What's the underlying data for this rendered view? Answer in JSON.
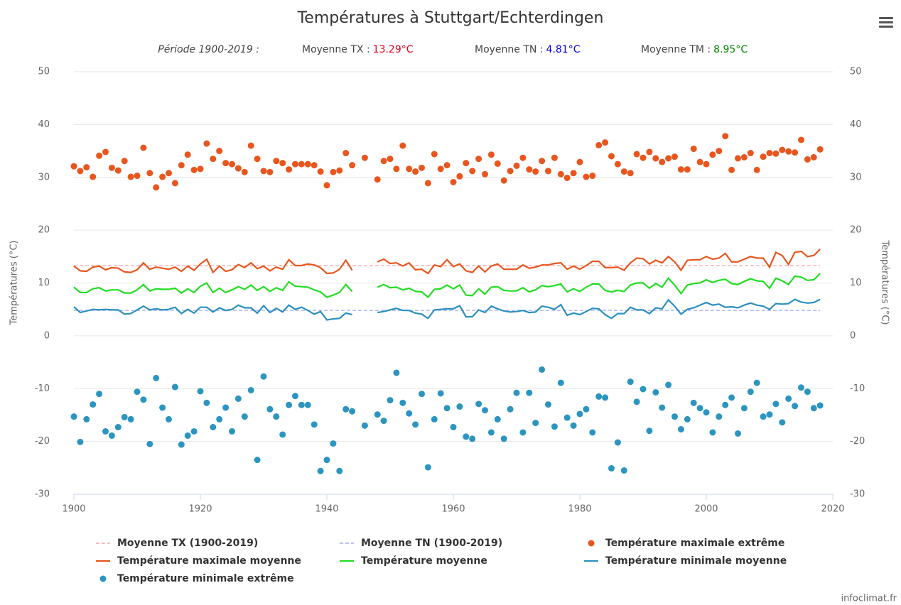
{
  "chart_data": {
    "type": "line",
    "title": "Températures à Stuttgart/Echterdingen",
    "period": "Période 1900-2019 :",
    "summary": [
      {
        "label": "Moyenne TX :",
        "value": 13.29,
        "value_label": "13.29°C",
        "color": "#e8001c",
        "line_name": "Moyenne TX (1900-2019)",
        "line_color": "#f4a3a8"
      },
      {
        "label": "Moyenne TN :",
        "value": 4.81,
        "value_label": "4.81°C",
        "color": "#0000ee",
        "line_name": "Moyenne TN (1900-2019)",
        "line_color": "#a3a8f4"
      },
      {
        "label": "Moyenne TM :",
        "value": 8.95,
        "value_label": "8.95°C",
        "color": "#008800"
      }
    ],
    "ylabel": "Températures (°C)",
    "y2label": "Températures (°C)",
    "xlim": [
      1900,
      2020
    ],
    "xticks": [
      1900,
      1920,
      1940,
      1960,
      1980,
      2000,
      2020
    ],
    "ylim": [
      -30,
      50
    ],
    "yticks": [
      -30,
      -20,
      -10,
      0,
      10,
      20,
      30,
      40,
      50
    ],
    "y2lim": [
      -30,
      50
    ],
    "y2ticks": [
      -30,
      -20,
      -10,
      0,
      10,
      20,
      30,
      40,
      50
    ],
    "grid": true,
    "credits": "infoclimat.fr",
    "x": [
      1900,
      1901,
      1902,
      1903,
      1904,
      1905,
      1906,
      1907,
      1908,
      1909,
      1910,
      1911,
      1912,
      1913,
      1914,
      1915,
      1916,
      1917,
      1918,
      1919,
      1920,
      1921,
      1922,
      1923,
      1924,
      1925,
      1926,
      1927,
      1928,
      1929,
      1930,
      1931,
      1932,
      1933,
      1934,
      1935,
      1936,
      1937,
      1938,
      1939,
      1940,
      1941,
      1942,
      1943,
      1944,
      1945,
      1946,
      1947,
      1948,
      1949,
      1950,
      1951,
      1952,
      1953,
      1954,
      1955,
      1956,
      1957,
      1958,
      1959,
      1960,
      1961,
      1962,
      1963,
      1964,
      1965,
      1966,
      1967,
      1968,
      1969,
      1970,
      1971,
      1972,
      1973,
      1974,
      1975,
      1976,
      1977,
      1978,
      1979,
      1980,
      1981,
      1982,
      1983,
      1984,
      1985,
      1986,
      1987,
      1988,
      1989,
      1990,
      1991,
      1992,
      1993,
      1994,
      1995,
      1996,
      1997,
      1998,
      1999,
      2000,
      2001,
      2002,
      2003,
      2004,
      2005,
      2006,
      2007,
      2008,
      2009,
      2010,
      2011,
      2012,
      2013,
      2014,
      2015,
      2016,
      2017,
      2018
    ],
    "series": [
      {
        "name": "Température maximale extrême",
        "kind": "scatter",
        "color": "#e8561e",
        "values": [
          32.1,
          31.2,
          31.9,
          30.1,
          34.1,
          34.8,
          31.8,
          31.3,
          33.1,
          30.1,
          30.3,
          35.6,
          30.8,
          28.1,
          30.1,
          30.8,
          28.9,
          32.3,
          34.3,
          31.4,
          31.6,
          36.4,
          33.5,
          35.0,
          32.7,
          32.5,
          31.7,
          31.0,
          36.0,
          33.5,
          31.2,
          31.0,
          33.1,
          32.7,
          31.5,
          32.5,
          32.5,
          32.5,
          32.3,
          31.1,
          28.5,
          31.0,
          31.3,
          34.6,
          32.3,
          null,
          33.7,
          null,
          29.6,
          33.1,
          33.5,
          31.6,
          36.0,
          31.6,
          31.1,
          31.8,
          28.9,
          34.4,
          31.6,
          32.3,
          29.1,
          30.2,
          32.7,
          31.2,
          33.5,
          30.6,
          34.3,
          32.6,
          29.4,
          31.2,
          32.2,
          33.7,
          31.5,
          31.1,
          33.1,
          31.2,
          33.7,
          30.6,
          29.9,
          30.8,
          32.9,
          30.1,
          30.3,
          36.1,
          36.6,
          34.0,
          32.5,
          31.1,
          30.8,
          34.4,
          33.7,
          34.8,
          33.6,
          32.9,
          33.6,
          33.9,
          31.5,
          31.5,
          35.4,
          32.9,
          32.5,
          34.3,
          35.0,
          37.8,
          31.4,
          33.6,
          33.8,
          34.6,
          31.4,
          33.9,
          34.6,
          34.5,
          35.2,
          34.9,
          34.7,
          37.1,
          33.4,
          33.8,
          35.3
        ]
      },
      {
        "name": "Température maximale moyenne",
        "kind": "line",
        "color": "#e8561e",
        "values": [
          13.2,
          12.3,
          12.2,
          13.0,
          13.2,
          12.5,
          12.9,
          12.8,
          12.1,
          12.0,
          12.5,
          13.8,
          12.6,
          13.0,
          12.8,
          12.6,
          13.0,
          12.2,
          13.2,
          12.4,
          13.6,
          14.5,
          12.0,
          13.2,
          12.2,
          12.5,
          13.5,
          12.9,
          13.8,
          12.7,
          13.2,
          12.3,
          13.0,
          12.6,
          14.4,
          13.3,
          13.3,
          13.6,
          13.4,
          12.9,
          11.8,
          11.9,
          12.6,
          14.3,
          12.4,
          null,
          null,
          null,
          14.0,
          14.5,
          13.7,
          13.8,
          13.2,
          13.8,
          12.5,
          12.6,
          11.8,
          13.4,
          13.1,
          14.4,
          13.1,
          13.6,
          12.3,
          12.0,
          13.2,
          12.1,
          13.2,
          13.6,
          12.6,
          12.6,
          12.6,
          13.4,
          12.8,
          13.0,
          13.4,
          13.4,
          13.7,
          13.8,
          12.6,
          13.2,
          12.6,
          13.3,
          14.1,
          14.1,
          12.9,
          12.9,
          13.0,
          12.4,
          13.8,
          14.7,
          14.6,
          13.6,
          14.3,
          13.8,
          15.0,
          14.0,
          12.4,
          14.3,
          14.4,
          14.4,
          15.0,
          14.5,
          14.7,
          15.6,
          14.0,
          14.0,
          14.5,
          15.0,
          14.7,
          14.7,
          13.0,
          15.8,
          15.2,
          13.5,
          15.8,
          16.0,
          15.0,
          15.2,
          16.4
        ]
      },
      {
        "name": "Température moyenne",
        "kind": "line",
        "color": "#22dd22",
        "values": [
          9.2,
          8.2,
          8.2,
          8.9,
          9.1,
          8.5,
          8.7,
          8.7,
          8.1,
          8.1,
          8.7,
          9.7,
          8.5,
          8.9,
          8.8,
          8.8,
          9.0,
          8.1,
          8.9,
          8.2,
          9.4,
          10.0,
          8.2,
          9.0,
          8.2,
          8.7,
          9.3,
          8.8,
          9.6,
          8.6,
          9.3,
          8.4,
          9.1,
          8.6,
          10.2,
          9.4,
          9.3,
          9.2,
          8.7,
          8.3,
          7.3,
          7.7,
          8.2,
          9.7,
          8.4,
          null,
          null,
          null,
          9.2,
          9.7,
          9.1,
          9.2,
          8.7,
          9.0,
          8.4,
          8.3,
          7.3,
          8.8,
          8.9,
          9.6,
          8.9,
          9.6,
          7.7,
          7.6,
          8.9,
          7.9,
          9.2,
          9.3,
          8.6,
          8.5,
          8.5,
          9.1,
          8.3,
          8.7,
          9.5,
          9.3,
          9.5,
          9.8,
          8.3,
          8.9,
          8.4,
          9.2,
          9.8,
          9.8,
          8.6,
          8.3,
          8.6,
          8.4,
          9.6,
          10.0,
          10.0,
          9.0,
          9.9,
          9.2,
          10.9,
          9.6,
          8.0,
          9.6,
          9.9,
          10.0,
          10.6,
          10.1,
          10.5,
          10.7,
          9.9,
          9.7,
          10.3,
          10.8,
          10.4,
          10.3,
          9.0,
          10.9,
          10.4,
          9.7,
          11.3,
          11.1,
          10.5,
          10.6,
          11.8
        ]
      },
      {
        "name": "Température minimale moyenne",
        "kind": "line",
        "color": "#2b8fbf",
        "values": [
          5.5,
          4.4,
          4.7,
          5.0,
          4.9,
          5.0,
          4.9,
          4.9,
          4.1,
          4.2,
          4.9,
          5.6,
          4.9,
          5.1,
          4.9,
          5.0,
          5.4,
          4.2,
          5.0,
          4.3,
          5.4,
          5.4,
          4.5,
          5.3,
          4.8,
          5.0,
          5.8,
          5.3,
          5.3,
          4.3,
          5.7,
          4.4,
          5.2,
          4.5,
          5.8,
          5.0,
          5.4,
          4.8,
          4.1,
          4.6,
          3.0,
          3.2,
          3.3,
          4.3,
          4.0,
          null,
          null,
          null,
          4.4,
          4.6,
          4.9,
          5.2,
          4.8,
          4.8,
          4.3,
          4.1,
          3.3,
          4.9,
          5.0,
          5.1,
          5.1,
          5.7,
          3.6,
          3.6,
          4.9,
          4.4,
          5.6,
          5.1,
          4.7,
          4.5,
          4.6,
          4.8,
          4.4,
          4.5,
          5.6,
          5.4,
          5.0,
          5.9,
          3.9,
          4.3,
          4.0,
          4.6,
          5.2,
          5.1,
          4.0,
          3.3,
          4.2,
          4.2,
          5.4,
          4.9,
          4.9,
          4.2,
          5.3,
          5.1,
          6.8,
          5.6,
          4.1,
          5.0,
          5.3,
          5.8,
          6.3,
          5.8,
          6.0,
          5.4,
          5.5,
          5.3,
          5.8,
          6.2,
          5.8,
          5.6,
          5.0,
          6.1,
          6.0,
          6.1,
          6.9,
          6.4,
          6.2,
          6.3,
          6.9
        ]
      },
      {
        "name": "Température minimale extrême",
        "kind": "scatter",
        "color": "#2b95c0",
        "values": [
          -15.3,
          -20.1,
          -15.8,
          -13.0,
          -11.0,
          -18.1,
          -18.9,
          -17.3,
          -15.4,
          -15.8,
          -10.6,
          -12.1,
          -20.5,
          -8.0,
          -13.6,
          -15.8,
          -9.7,
          -20.6,
          -18.9,
          -18.1,
          -10.5,
          -12.7,
          -17.3,
          -15.8,
          -13.6,
          -18.1,
          -11.9,
          -15.3,
          -10.3,
          -23.5,
          -7.7,
          -13.9,
          -15.3,
          -18.7,
          -13.1,
          -11.4,
          -13.1,
          -13.1,
          -16.8,
          -25.6,
          -23.5,
          -20.4,
          -25.6,
          -13.9,
          -14.3,
          null,
          -17.0,
          null,
          -14.9,
          -16.1,
          -12.2,
          -7.0,
          -12.7,
          -14.7,
          -16.8,
          -11.0,
          -24.9,
          -15.8,
          -10.9,
          -13.7,
          -17.3,
          -13.4,
          -19.1,
          -19.5,
          -12.9,
          -14.1,
          -18.3,
          -15.8,
          -19.5,
          -13.9,
          -10.8,
          -18.3,
          -10.8,
          -16.5,
          -6.4,
          -13.0,
          -17.2,
          -8.9,
          -15.5,
          -17.0,
          -14.8,
          -13.9,
          -18.3,
          -11.5,
          -11.7,
          -25.1,
          -20.2,
          -25.5,
          -8.7,
          -12.5,
          -10.1,
          -18.0,
          -10.7,
          -13.6,
          -9.3,
          -15.3,
          -17.7,
          -15.8,
          -12.7,
          -13.7,
          -14.5,
          -18.3,
          -15.3,
          -13.1,
          -11.7,
          -18.5,
          -13.7,
          -10.6,
          -8.9,
          -15.3,
          -14.9,
          -12.9,
          -16.4,
          -11.9,
          -13.3,
          -9.8,
          -10.6,
          -13.7,
          -13.2
        ]
      }
    ]
  }
}
